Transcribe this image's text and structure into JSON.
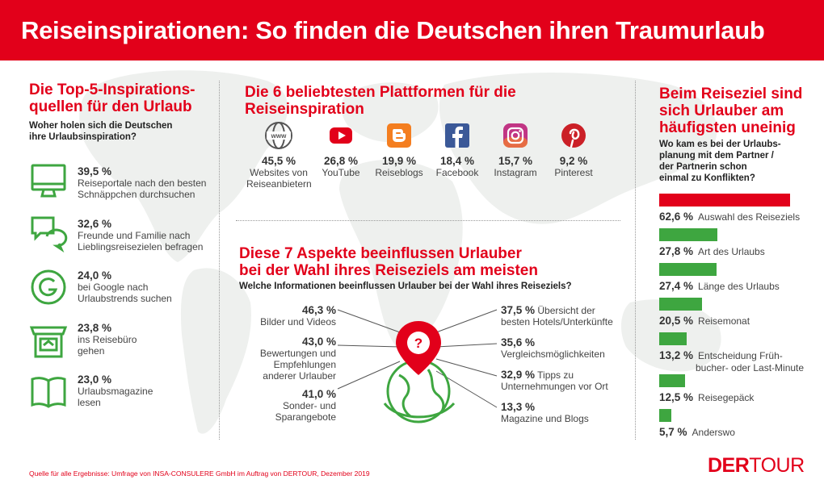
{
  "header": {
    "title": "Reiseinspirationen: So finden die Deutschen ihren Traumurlaub"
  },
  "colors": {
    "brand_red": "#e2001a",
    "bar_green": "#3ea640",
    "icon_green": "#3ea640"
  },
  "left": {
    "title_line1": "Die Top-5-Inspirations-",
    "title_line2": "quellen für den Urlaub",
    "subtitle_line1": "Woher holen sich die Deutschen",
    "subtitle_line2": "ihre Urlaubsinspiration?",
    "items": [
      {
        "icon": "monitor-icon",
        "pct": "39,5 %",
        "line1": "Reiseportale nach den besten",
        "line2": "Schnäppchen durchsuchen"
      },
      {
        "icon": "chat-bubbles-icon",
        "pct": "32,6 %",
        "line1": "Freunde und Familie nach",
        "line2": "Lieblingsreisezielen befragen"
      },
      {
        "icon": "google-icon",
        "pct": "24,0 %",
        "line1": "bei Google nach",
        "line2": "Urlaubstrends suchen"
      },
      {
        "icon": "travel-agency-icon",
        "pct": "23,8 %",
        "line1": "ins Reisebüro",
        "line2": "gehen"
      },
      {
        "icon": "open-book-icon",
        "pct": "23,0 %",
        "line1": "Urlaubsmagazine",
        "line2": "lesen"
      }
    ]
  },
  "platforms": {
    "title": "Die 6 beliebtesten Plattformen für die Reiseinspiration",
    "items": [
      {
        "icon": "www-globe-icon",
        "pct": "45,5 %",
        "line1": "Websites von",
        "line2": "Reiseanbietern"
      },
      {
        "icon": "youtube-icon",
        "pct": "26,8 %",
        "line1": "YouTube",
        "line2": ""
      },
      {
        "icon": "blogger-icon",
        "pct": "19,9 %",
        "line1": "Reiseblogs",
        "line2": ""
      },
      {
        "icon": "facebook-icon",
        "pct": "18,4 %",
        "line1": "Facebook",
        "line2": ""
      },
      {
        "icon": "instagram-icon",
        "pct": "15,7 %",
        "line1": "Instagram",
        "line2": ""
      },
      {
        "icon": "pinterest-icon",
        "pct": "9,2 %",
        "line1": "Pinterest",
        "line2": ""
      }
    ]
  },
  "aspects": {
    "title_line1": "Diese 7 Aspekte beeinflussen Urlauber",
    "title_line2": "bei der Wahl ihres Reiseziels am meisten",
    "subtitle": "Welche Informationen beeinflussen Urlauber bei der Wahl ihres Reiseziels?",
    "left_items": [
      {
        "pct": "46,3 %",
        "line1": "Bilder und Videos",
        "line2": "",
        "line3": ""
      },
      {
        "pct": "43,0 %",
        "line1": "Bewertungen und",
        "line2": "Empfehlungen",
        "line3": "anderer Urlauber"
      },
      {
        "pct": "41,0 %",
        "line1": "Sonder- und",
        "line2": "Sparangebote",
        "line3": ""
      }
    ],
    "right_items": [
      {
        "pct": "37,5 %",
        "line1": "Übersicht der",
        "line2": "besten Hotels/Unterkünfte"
      },
      {
        "pct": "35,6 %",
        "line1": "",
        "line2": "Vergleichsmöglichkeiten"
      },
      {
        "pct": "32,9 %",
        "line1": "Tipps zu",
        "line2": "Unternehmungen vor Ort"
      },
      {
        "pct": "13,3 %",
        "line1": "",
        "line2": "Magazine und Blogs"
      }
    ],
    "center_icon": "globe-pin-question-icon",
    "pin_symbol": "?"
  },
  "conflict": {
    "title_line1": "Beim Reiseziel sind",
    "title_line2": "sich Urlauber am",
    "title_line3": "häufigsten uneinig",
    "subtitle_line1": "Wo kam es bei der Urlaubs-",
    "subtitle_line2": "planung mit dem Partner /",
    "subtitle_line3": "der Partnerin schon",
    "subtitle_line4": "einmal zu Konflikten?",
    "items": [
      {
        "pct": "62,6 %",
        "value": 62.6,
        "line1": "Auswahl des Reiseziels",
        "line2": ""
      },
      {
        "pct": "27,8 %",
        "value": 27.8,
        "line1": "Art des Urlaubs",
        "line2": ""
      },
      {
        "pct": "27,4 %",
        "value": 27.4,
        "line1": "Länge des Urlaubs",
        "line2": ""
      },
      {
        "pct": "20,5 %",
        "value": 20.5,
        "line1": "Reisemonat",
        "line2": ""
      },
      {
        "pct": "13,2 %",
        "value": 13.2,
        "line1": "Entscheidung Früh-",
        "line2": "bucher- oder Last-Minute"
      },
      {
        "pct": "12,5 %",
        "value": 12.5,
        "line1": "Reisegepäck",
        "line2": ""
      },
      {
        "pct": "5,7 %",
        "value": 5.7,
        "line1": "Anderswo",
        "line2": ""
      }
    ]
  },
  "footer": {
    "source": "Quelle für alle Ergebnisse: Umfrage von INSA-CONSULERE GmbH im Auftrag von DERTOUR, Dezember 2019",
    "logo_part1": "DER",
    "logo_part2": "TOUR"
  }
}
